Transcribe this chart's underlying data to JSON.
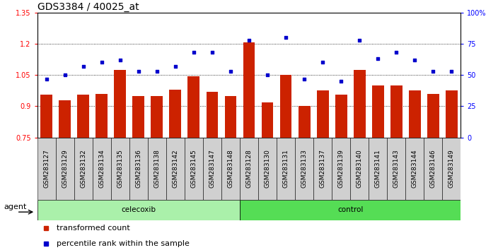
{
  "title": "GDS3384 / 40025_at",
  "samples": [
    "GSM283127",
    "GSM283129",
    "GSM283132",
    "GSM283134",
    "GSM283135",
    "GSM283136",
    "GSM283138",
    "GSM283142",
    "GSM283145",
    "GSM283147",
    "GSM283148",
    "GSM283128",
    "GSM283130",
    "GSM283131",
    "GSM283133",
    "GSM283137",
    "GSM283139",
    "GSM283140",
    "GSM283141",
    "GSM283143",
    "GSM283144",
    "GSM283146",
    "GSM283149"
  ],
  "bar_values": [
    0.955,
    0.93,
    0.955,
    0.96,
    1.075,
    0.95,
    0.95,
    0.98,
    1.045,
    0.97,
    0.95,
    1.205,
    0.92,
    1.05,
    0.9,
    0.975,
    0.955,
    1.075,
    1.0,
    1.0,
    0.975,
    0.96,
    0.975
  ],
  "dot_values": [
    47,
    50,
    57,
    60,
    62,
    53,
    53,
    57,
    68,
    68,
    53,
    78,
    50,
    80,
    47,
    60,
    45,
    78,
    63,
    68,
    62,
    53,
    53
  ],
  "celecoxib_count": 11,
  "control_count": 12,
  "ylim_left": [
    0.75,
    1.35
  ],
  "ylim_right": [
    0,
    100
  ],
  "yticks_left": [
    0.75,
    0.9,
    1.05,
    1.2,
    1.35
  ],
  "yticks_right": [
    0,
    25,
    50,
    75,
    100
  ],
  "ytick_labels_right": [
    "0",
    "25",
    "50",
    "75",
    "100%"
  ],
  "bar_color": "#cc2200",
  "dot_color": "#0000cc",
  "bg_plot": "#ffffff",
  "bg_xtick": "#d0d0d0",
  "bg_celecoxib": "#aaf0aa",
  "bg_control": "#55dd55",
  "agent_label": "agent",
  "celecoxib_label": "celecoxib",
  "control_label": "control",
  "legend_bar_label": "transformed count",
  "legend_dot_label": "percentile rank within the sample",
  "title_fontsize": 10,
  "tick_fontsize": 7,
  "label_fontsize": 8,
  "xtick_fontsize": 6.5
}
